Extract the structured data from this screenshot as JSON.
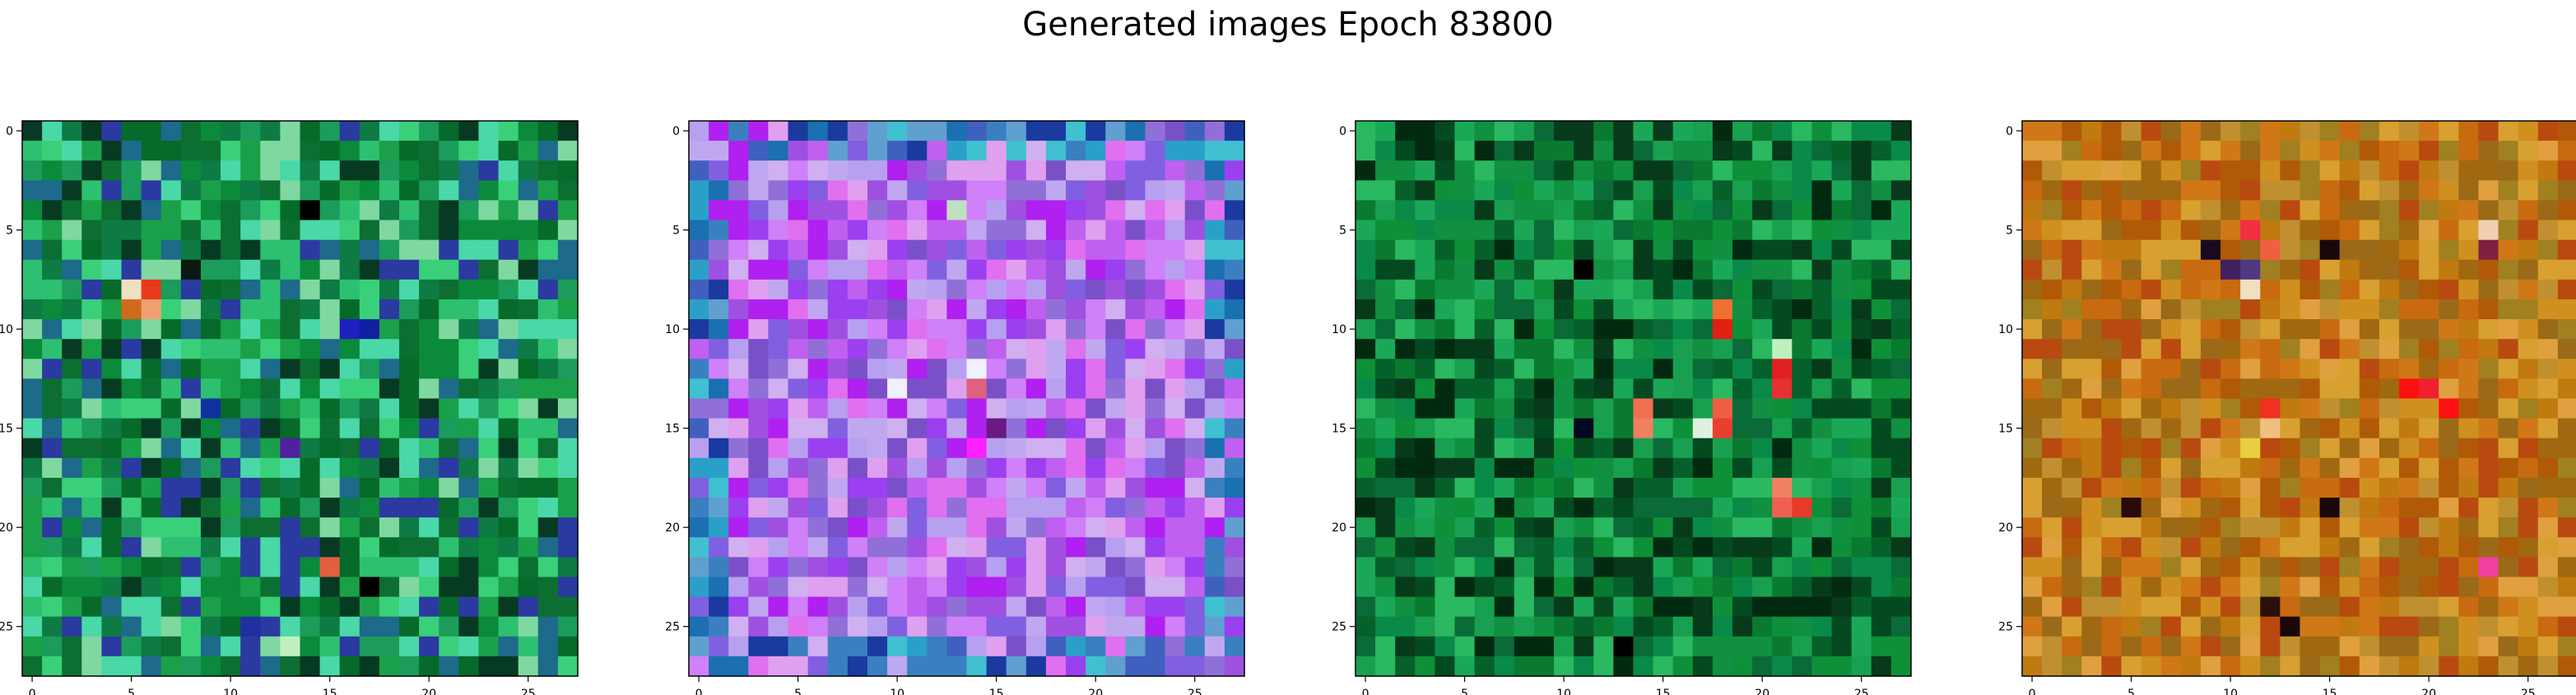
{
  "figure_title": "Generated images Epoch 83800",
  "chart_data": [
    {
      "type": "heatmap",
      "grid": [
        28,
        28
      ],
      "xlim": [
        -0.5,
        27.5
      ],
      "ylim": [
        27.5,
        -0.5
      ],
      "xticks": [
        0,
        5,
        10,
        15,
        20,
        25
      ],
      "yticks": [
        0,
        5,
        10,
        15,
        20,
        25
      ],
      "x_tick_labels": [
        "0",
        "5",
        "10",
        "15",
        "20",
        "25"
      ],
      "y_tick_labels": [
        "0",
        "5",
        "10",
        "15",
        "20",
        "25"
      ],
      "palette": [
        "#0a8a3a",
        "#1aa048",
        "#0d6e32",
        "#2dc070",
        "#066a2a",
        "#3ad07a",
        "#0e7a44",
        "#1b9c5a",
        "#063a22",
        "#7fd8a0",
        "#1d6a8a",
        "#2a3aa0",
        "#4ad8a8"
      ],
      "highlights": [
        {
          "row": 8,
          "col": 5,
          "color": "#f0e0c0"
        },
        {
          "row": 8,
          "col": 6,
          "color": "#e83a1a"
        },
        {
          "row": 9,
          "col": 5,
          "color": "#d06a1a"
        },
        {
          "row": 9,
          "col": 6,
          "color": "#f0a070"
        },
        {
          "row": 7,
          "col": 8,
          "color": "#0a1a10"
        },
        {
          "row": 4,
          "col": 14,
          "color": "#000000"
        },
        {
          "row": 10,
          "col": 16,
          "color": "#2020c0"
        },
        {
          "row": 10,
          "col": 17,
          "color": "#1020a0"
        },
        {
          "row": 14,
          "col": 9,
          "color": "#1030a0"
        },
        {
          "row": 16,
          "col": 13,
          "color": "#5020a0"
        },
        {
          "row": 22,
          "col": 15,
          "color": "#e06040"
        },
        {
          "row": 23,
          "col": 17,
          "color": "#000000"
        },
        {
          "row": 25,
          "col": 11,
          "color": "#2030a0"
        },
        {
          "row": 26,
          "col": 13,
          "color": "#c0f0c0"
        }
      ]
    },
    {
      "type": "heatmap",
      "grid": [
        28,
        28
      ],
      "xlim": [
        -0.5,
        27.5
      ],
      "ylim": [
        27.5,
        -0.5
      ],
      "xticks": [
        0,
        5,
        10,
        15,
        20,
        25
      ],
      "yticks": [
        0,
        5,
        10,
        15,
        20,
        25
      ],
      "x_tick_labels": [
        "0",
        "5",
        "10",
        "15",
        "20",
        "25"
      ],
      "y_tick_labels": [
        "0",
        "5",
        "10",
        "15",
        "20",
        "25"
      ],
      "palette": [
        "#c060f0",
        "#a050e0",
        "#d080f8",
        "#b8a0f0",
        "#8060e0",
        "#e070f0",
        "#9a40f0",
        "#c0a8f0",
        "#7a50c8",
        "#d0b0f0",
        "#b020f0",
        "#9070d8",
        "#e0a0f0"
      ],
      "edge_palette": [
        "#2aa0c8",
        "#1a70b0",
        "#40c0d0",
        "#3a80c0",
        "#1a3aa0",
        "#60a0d0",
        "#4060c0"
      ],
      "highlights": [
        {
          "row": 13,
          "col": 10,
          "color": "#f0f0ff"
        },
        {
          "row": 12,
          "col": 14,
          "color": "#f0f0ff"
        },
        {
          "row": 13,
          "col": 14,
          "color": "#e06080"
        },
        {
          "row": 16,
          "col": 14,
          "color": "#ff20ff"
        },
        {
          "row": 15,
          "col": 15,
          "color": "#6a1a80"
        },
        {
          "row": 4,
          "col": 13,
          "color": "#c0e0c0"
        }
      ]
    },
    {
      "type": "heatmap",
      "grid": [
        28,
        28
      ],
      "xlim": [
        -0.5,
        27.5
      ],
      "ylim": [
        27.5,
        -0.5
      ],
      "xticks": [
        0,
        5,
        10,
        15,
        20,
        25
      ],
      "yticks": [
        0,
        5,
        10,
        15,
        20,
        25
      ],
      "x_tick_labels": [
        "0",
        "5",
        "10",
        "15",
        "20",
        "25"
      ],
      "y_tick_labels": [
        "0",
        "5",
        "10",
        "15",
        "20",
        "25"
      ],
      "palette": [
        "#0a7a30",
        "#109040",
        "#06602a",
        "#18a050",
        "#044a20",
        "#0a8a48",
        "#1aa858",
        "#063a1a",
        "#0e9038",
        "#2ab860",
        "#0a6a38",
        "#012a10"
      ],
      "highlights": [
        {
          "row": 9,
          "col": 18,
          "color": "#f07030"
        },
        {
          "row": 10,
          "col": 18,
          "color": "#e02010"
        },
        {
          "row": 11,
          "col": 21,
          "color": "#c0f0c0"
        },
        {
          "row": 12,
          "col": 21,
          "color": "#e02020"
        },
        {
          "row": 13,
          "col": 21,
          "color": "#e83030"
        },
        {
          "row": 14,
          "col": 14,
          "color": "#f07050"
        },
        {
          "row": 15,
          "col": 14,
          "color": "#f08060"
        },
        {
          "row": 14,
          "col": 18,
          "color": "#f06040"
        },
        {
          "row": 15,
          "col": 18,
          "color": "#e84030"
        },
        {
          "row": 15,
          "col": 17,
          "color": "#e0f0e0"
        },
        {
          "row": 18,
          "col": 21,
          "color": "#f08060"
        },
        {
          "row": 19,
          "col": 22,
          "color": "#e83a2a"
        },
        {
          "row": 19,
          "col": 21,
          "color": "#f06050"
        },
        {
          "row": 7,
          "col": 11,
          "color": "#000000"
        },
        {
          "row": 15,
          "col": 11,
          "color": "#000820"
        },
        {
          "row": 26,
          "col": 13,
          "color": "#000000"
        }
      ]
    },
    {
      "type": "heatmap",
      "grid": [
        28,
        28
      ],
      "xlim": [
        -0.5,
        27.5
      ],
      "ylim": [
        27.5,
        -0.5
      ],
      "xticks": [
        0,
        5,
        10,
        15,
        20,
        25
      ],
      "yticks": [
        0,
        5,
        10,
        15,
        20,
        25
      ],
      "x_tick_labels": [
        "0",
        "5",
        "10",
        "15",
        "20",
        "25"
      ],
      "y_tick_labels": [
        "0",
        "5",
        "10",
        "15",
        "20",
        "25"
      ],
      "palette": [
        "#c07a10",
        "#b05a08",
        "#d09020",
        "#a06810",
        "#c86a10",
        "#d8a030",
        "#b84a10",
        "#a08020",
        "#c09030",
        "#d07818",
        "#9a6a18",
        "#e0a040"
      ],
      "highlights": [
        {
          "row": 6,
          "col": 9,
          "color": "#1a0a20"
        },
        {
          "row": 7,
          "col": 10,
          "color": "#402060"
        },
        {
          "row": 7,
          "col": 11,
          "color": "#503880"
        },
        {
          "row": 8,
          "col": 11,
          "color": "#f0e0c0"
        },
        {
          "row": 5,
          "col": 11,
          "color": "#f03040"
        },
        {
          "row": 6,
          "col": 12,
          "color": "#f06040"
        },
        {
          "row": 6,
          "col": 15,
          "color": "#1a0808"
        },
        {
          "row": 5,
          "col": 23,
          "color": "#f0d0b0"
        },
        {
          "row": 6,
          "col": 23,
          "color": "#802040"
        },
        {
          "row": 13,
          "col": 19,
          "color": "#ff1010"
        },
        {
          "row": 14,
          "col": 21,
          "color": "#ff1010"
        },
        {
          "row": 13,
          "col": 20,
          "color": "#f02030"
        },
        {
          "row": 14,
          "col": 12,
          "color": "#f03020"
        },
        {
          "row": 15,
          "col": 12,
          "color": "#f0c080"
        },
        {
          "row": 16,
          "col": 11,
          "color": "#e8d040"
        },
        {
          "row": 19,
          "col": 5,
          "color": "#2a0a08"
        },
        {
          "row": 19,
          "col": 15,
          "color": "#1a0808"
        },
        {
          "row": 24,
          "col": 12,
          "color": "#2a1008"
        },
        {
          "row": 25,
          "col": 13,
          "color": "#1a0808"
        },
        {
          "row": 22,
          "col": 23,
          "color": "#f040a0"
        }
      ]
    }
  ]
}
